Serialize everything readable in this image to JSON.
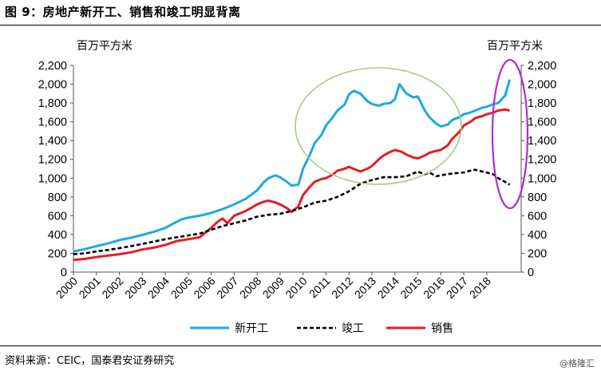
{
  "header": {
    "title": "图 9：房地产新开工、销售和竣工明显背离"
  },
  "footer": {
    "source": "资料来源：CEIC，国泰君安证券研究",
    "watermark": "@格隆汇"
  },
  "chart_data": {
    "type": "line",
    "title": "图 9：房地产新开工、销售和竣工明显背离",
    "ylabel_left": "百万平方米",
    "ylabel_right": "百万平方米",
    "ylim": [
      0,
      2200
    ],
    "yticks": [
      0,
      200,
      400,
      600,
      800,
      1000,
      1200,
      1400,
      1600,
      1800,
      2000,
      2200
    ],
    "ytick_labels": [
      "0",
      "200",
      "400",
      "600",
      "800",
      "1,000",
      "1,200",
      "1,400",
      "1,600",
      "1,800",
      "2,000",
      "2,200"
    ],
    "xlim": [
      2000,
      2019.5
    ],
    "xticks": [
      "2000",
      "2001",
      "2002",
      "2003",
      "2004",
      "2005",
      "2006",
      "2007",
      "2008",
      "2009",
      "2010",
      "2011",
      "2012",
      "2013",
      "2014",
      "2015",
      "2016",
      "2017",
      "2018"
    ],
    "series": [
      {
        "name": "新开工",
        "color": "#1fa9e1",
        "dash": "solid",
        "x": [
          2000.0,
          2000.5,
          2001.0,
          2001.5,
          2002.0,
          2002.5,
          2003.0,
          2003.5,
          2004.0,
          2004.3,
          2004.7,
          2005.0,
          2005.5,
          2006.0,
          2006.5,
          2007.0,
          2007.5,
          2008.0,
          2008.3,
          2008.5,
          2008.8,
          2009.0,
          2009.3,
          2009.5,
          2009.8,
          2010.0,
          2010.3,
          2010.5,
          2010.8,
          2011.0,
          2011.3,
          2011.5,
          2011.8,
          2012.0,
          2012.2,
          2012.5,
          2012.8,
          2013.0,
          2013.3,
          2013.5,
          2013.8,
          2014.0,
          2014.2,
          2014.5,
          2014.8,
          2015.0,
          2015.3,
          2015.5,
          2015.8,
          2016.0,
          2016.3,
          2016.5,
          2016.8,
          2017.0,
          2017.3,
          2017.5,
          2017.8,
          2018.0,
          2018.3,
          2018.5,
          2018.8,
          2019.0
        ],
        "values": [
          220,
          245,
          275,
          305,
          340,
          365,
          395,
          430,
          470,
          510,
          560,
          580,
          600,
          630,
          670,
          720,
          780,
          870,
          960,
          1000,
          1030,
          1010,
          960,
          920,
          930,
          1100,
          1250,
          1370,
          1460,
          1560,
          1650,
          1720,
          1780,
          1890,
          1930,
          1900,
          1820,
          1790,
          1770,
          1790,
          1800,
          1840,
          2000,
          1900,
          1860,
          1870,
          1720,
          1650,
          1580,
          1550,
          1570,
          1620,
          1650,
          1680,
          1700,
          1720,
          1750,
          1760,
          1790,
          1800,
          1880,
          2050
        ]
      },
      {
        "name": "竣工",
        "color": "#000000",
        "dash": "dashed",
        "x": [
          2000.0,
          2000.5,
          2001.0,
          2001.5,
          2002.0,
          2002.5,
          2003.0,
          2003.5,
          2004.0,
          2004.5,
          2005.0,
          2005.5,
          2006.0,
          2006.5,
          2007.0,
          2007.5,
          2008.0,
          2008.5,
          2009.0,
          2009.5,
          2010.0,
          2010.5,
          2011.0,
          2011.5,
          2012.0,
          2012.5,
          2013.0,
          2013.5,
          2014.0,
          2014.5,
          2015.0,
          2015.3,
          2015.5,
          2015.8,
          2016.0,
          2016.5,
          2017.0,
          2017.3,
          2017.5,
          2017.8,
          2018.0,
          2018.3,
          2018.5,
          2018.8,
          2019.0
        ],
        "values": [
          190,
          200,
          220,
          235,
          255,
          275,
          300,
          325,
          350,
          370,
          390,
          410,
          450,
          490,
          520,
          550,
          590,
          610,
          620,
          650,
          690,
          740,
          760,
          800,
          860,
          940,
          980,
          1010,
          1010,
          1020,
          1070,
          1040,
          1060,
          1020,
          1030,
          1050,
          1060,
          1080,
          1090,
          1070,
          1060,
          1040,
          1000,
          960,
          930
        ]
      },
      {
        "name": "销售",
        "color": "#e31e24",
        "dash": "solid",
        "x": [
          2000.0,
          2000.5,
          2001.0,
          2001.5,
          2002.0,
          2002.5,
          2003.0,
          2003.5,
          2004.0,
          2004.5,
          2005.0,
          2005.5,
          2006.0,
          2006.3,
          2006.5,
          2006.7,
          2007.0,
          2007.5,
          2008.0,
          2008.3,
          2008.5,
          2008.8,
          2009.0,
          2009.3,
          2009.5,
          2009.8,
          2010.0,
          2010.3,
          2010.5,
          2010.8,
          2011.0,
          2011.3,
          2011.5,
          2011.8,
          2012.0,
          2012.3,
          2012.5,
          2012.8,
          2013.0,
          2013.3,
          2013.5,
          2013.8,
          2014.0,
          2014.3,
          2014.5,
          2014.8,
          2015.0,
          2015.3,
          2015.5,
          2015.8,
          2016.0,
          2016.3,
          2016.5,
          2016.8,
          2017.0,
          2017.3,
          2017.5,
          2017.8,
          2018.0,
          2018.3,
          2018.5,
          2018.8,
          2019.0
        ],
        "values": [
          130,
          140,
          160,
          175,
          190,
          210,
          240,
          260,
          290,
          330,
          350,
          370,
          470,
          540,
          570,
          520,
          600,
          650,
          720,
          750,
          760,
          740,
          720,
          680,
          640,
          700,
          820,
          910,
          960,
          990,
          1000,
          1040,
          1080,
          1100,
          1120,
          1090,
          1070,
          1100,
          1130,
          1200,
          1240,
          1280,
          1300,
          1280,
          1250,
          1220,
          1210,
          1240,
          1270,
          1290,
          1300,
          1350,
          1420,
          1490,
          1560,
          1600,
          1640,
          1660,
          1680,
          1700,
          1720,
          1730,
          1720
        ]
      }
    ],
    "legend": {
      "position": "bottom",
      "labels": [
        "新开工",
        "竣工",
        "销售"
      ]
    },
    "annotations": [
      {
        "type": "ellipse",
        "color": "#9dc183",
        "note": "新开工与销售背离区域"
      },
      {
        "type": "ellipse",
        "color": "#a020c0",
        "note": "2018年新开工与竣工背离"
      }
    ]
  }
}
